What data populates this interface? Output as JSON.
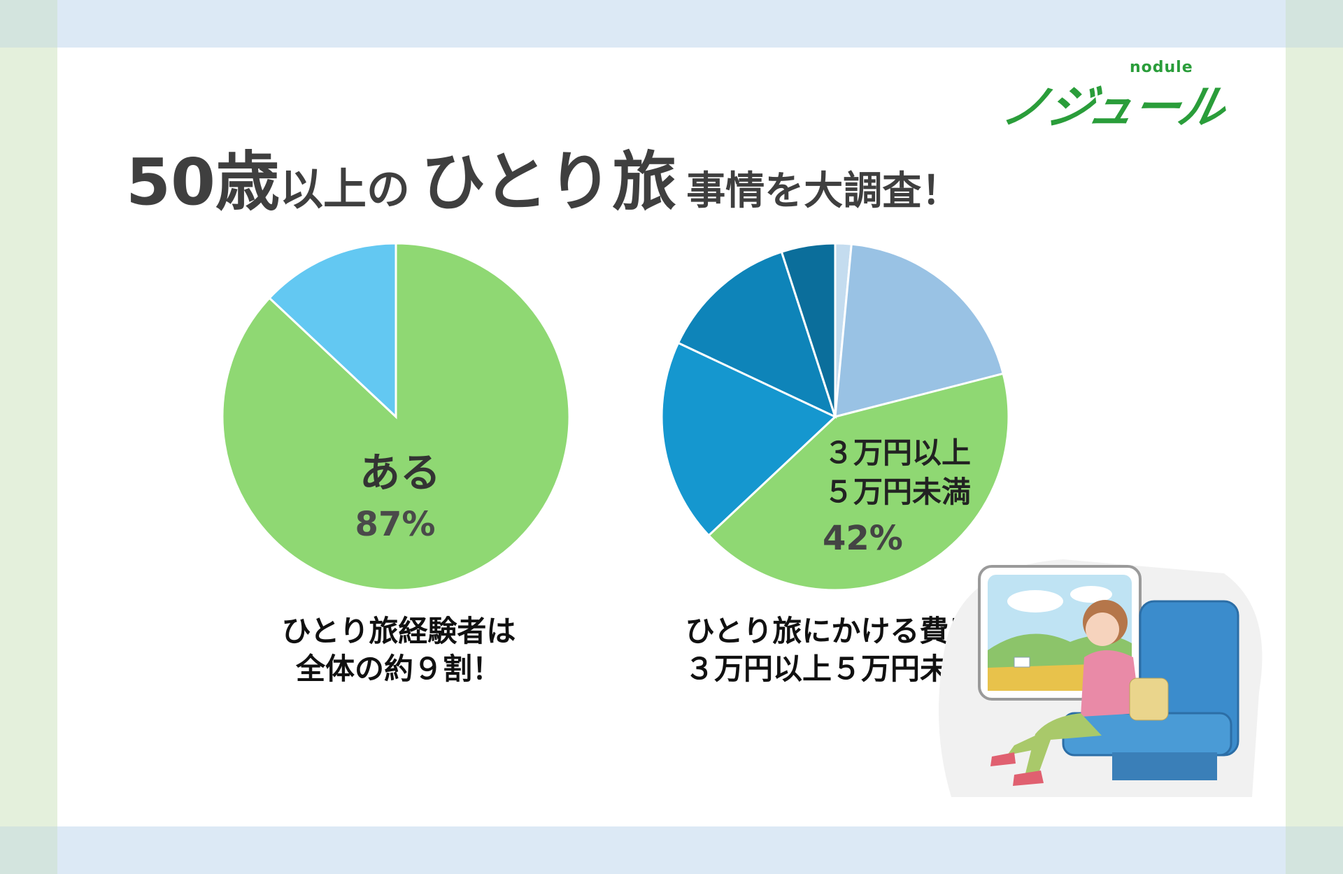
{
  "logo": {
    "small": "nodule",
    "main": "ノジュール"
  },
  "title": {
    "part1": "50歳",
    "part2": "以上の",
    "part3": "ひとり旅",
    "part4": "事情を大調査！"
  },
  "colors": {
    "frame_blue": "#dce9f5",
    "frame_green": "#e4f0dc",
    "green": "#8fd873",
    "light_blue": "#63c8f2",
    "title_gray": "#3f3f3f"
  },
  "chart_data": [
    {
      "type": "pie",
      "slices": [
        {
          "label": "ある",
          "value": 87,
          "color": "#8fd873"
        },
        {
          "label": "",
          "value": 13,
          "color": "#63c8f2"
        }
      ],
      "annotation": {
        "label": "ある",
        "value_text": "87%"
      },
      "caption": [
        "ひとり旅経験者は",
        "全体の約９割！"
      ]
    },
    {
      "type": "pie",
      "slices": [
        {
          "label": "",
          "value": 1.5,
          "color": "#c4dcef"
        },
        {
          "label": "",
          "value": 19.5,
          "color": "#99c2e4"
        },
        {
          "label": "３万円以上５万円未満",
          "value": 42,
          "color": "#8fd873"
        },
        {
          "label": "",
          "value": 19,
          "color": "#1597cf"
        },
        {
          "label": "",
          "value": 13,
          "color": "#0e84b9"
        },
        {
          "label": "",
          "value": 5,
          "color": "#0b6e9b"
        }
      ],
      "annotation": {
        "label_line1": "３万円以上",
        "label_line2": "５万円未満",
        "value_text": "42%"
      },
      "caption": [
        "ひとり旅にかける費用は",
        "３万円以上５万円未満！"
      ]
    }
  ]
}
